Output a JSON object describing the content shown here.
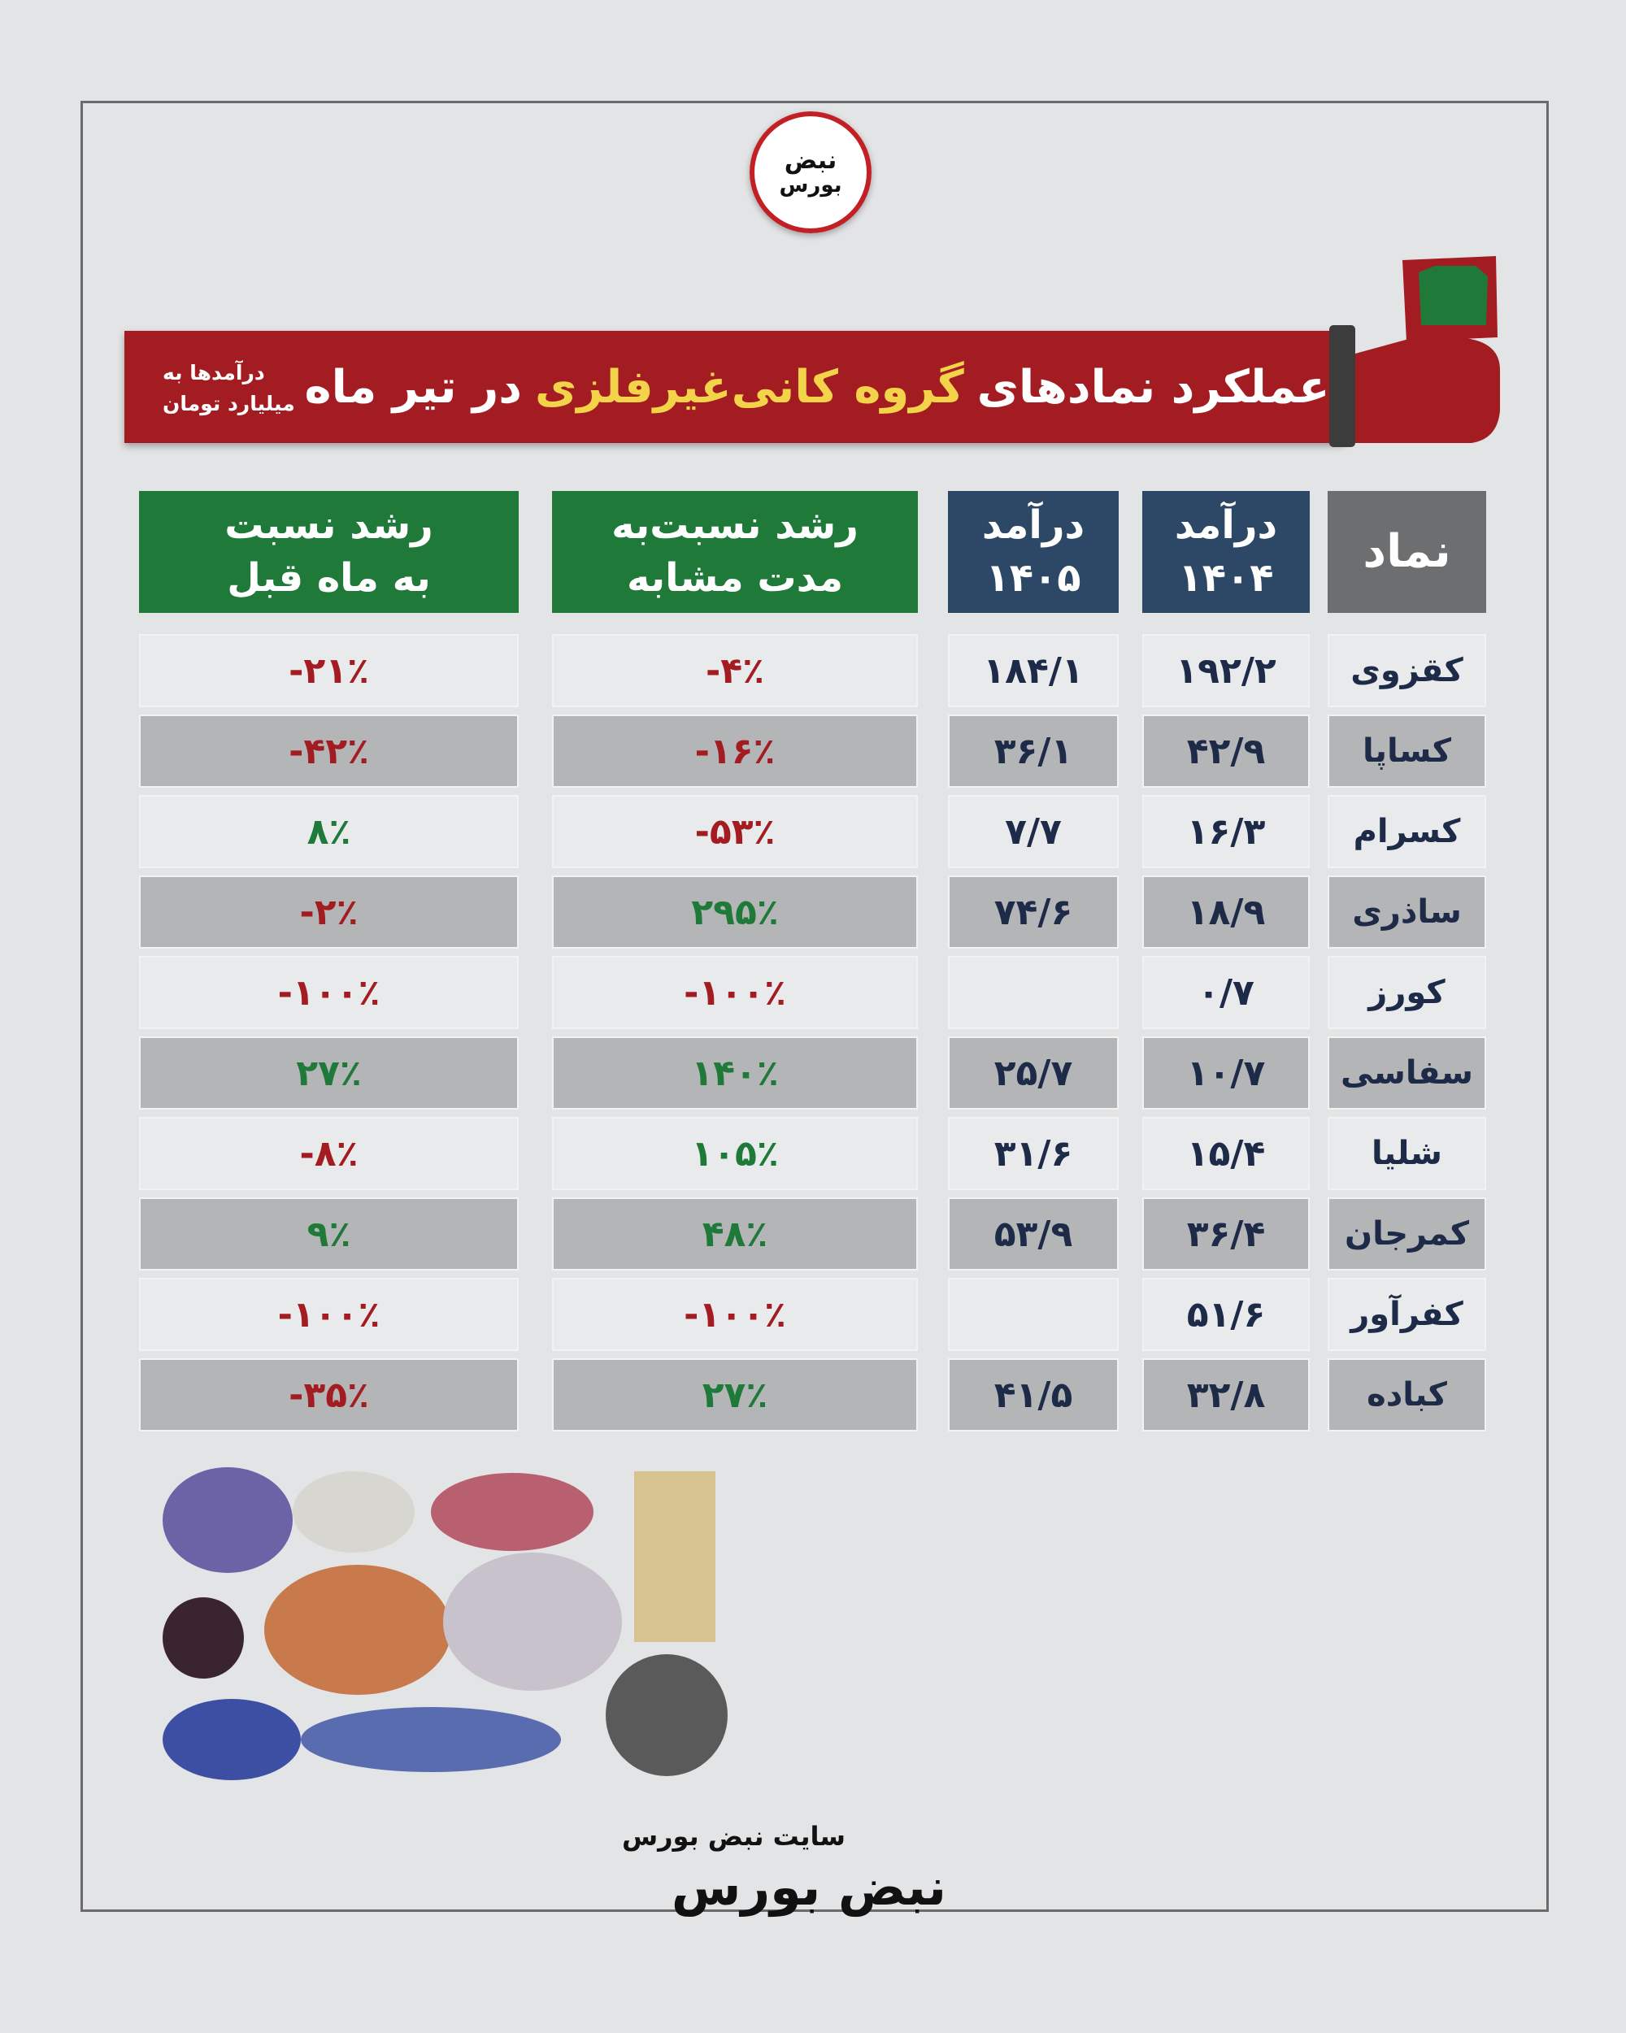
{
  "logo": [
    "نبض",
    "بورس"
  ],
  "header": {
    "title": {
      "before": "عملکرد نمادهای",
      "highlight": "گروه کانی‌غیرفلزی",
      "after": "در تیر ماه"
    },
    "note": [
      "درآمدها به",
      "میلیارد تومان"
    ]
  },
  "table": {
    "columns": [
      [
        "نماد"
      ],
      [
        "درآمد",
        "۱۴۰۴"
      ],
      [
        "درآمد",
        "۱۴۰۵"
      ],
      [
        "رشد نسبت‌به",
        "مدت مشابه"
      ],
      [
        "رشد نسبت",
        "به ماه قبل"
      ]
    ],
    "rows": [
      [
        "کقزوی",
        "۱۹۲/۲",
        "۱۸۴/۱",
        "-۴٪",
        "-۲۱٪"
      ],
      [
        "کساپا",
        "۴۲/۹",
        "۳۶/۱",
        "-۱۶٪",
        "-۴۲٪"
      ],
      [
        "کسرام",
        "۱۶/۳",
        "۷/۷",
        "-۵۳٪",
        "۸٪"
      ],
      [
        "ساذری",
        "۱۸/۹",
        "۷۴/۶",
        "۲۹۵٪",
        "-۲٪"
      ],
      [
        "کورز",
        "۰/۷",
        null,
        "-۱۰۰٪",
        "-۱۰۰٪"
      ],
      [
        "سفاسی",
        "۱۰/۷",
        "۲۵/۷",
        "۱۴۰٪",
        "۲۷٪"
      ],
      [
        "شلیا",
        "۱۵/۴",
        "۳۱/۶",
        "۱۰۵٪",
        "-۸٪"
      ],
      [
        "کمرجان",
        "۳۶/۴",
        "۵۳/۹",
        "۴۸٪",
        "۹٪"
      ],
      [
        "کفرآور",
        "۵۱/۶",
        null,
        "-۱۰۰٪",
        "-۱۰۰٪"
      ],
      [
        "کباده",
        "۳۲/۸",
        "۴۱/۵",
        "۲۷٪",
        "-۳۵٪"
      ]
    ]
  },
  "footer": {
    "site": "سایت نبض بورس",
    "brand": "نبض بورس"
  }
}
